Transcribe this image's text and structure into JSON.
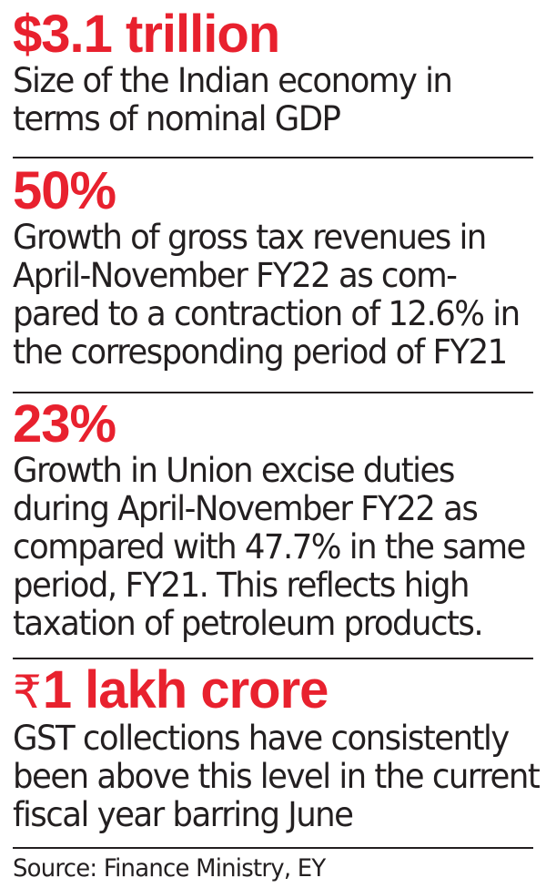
{
  "stats": [
    {
      "figure": "$3.1 trillion",
      "lines": [
        "Size of the Indian economy in",
        "terms of nominal GDP"
      ]
    },
    {
      "figure": "50%",
      "lines": [
        "Growth of gross tax revenues in",
        "April-November FY22 as com-",
        "pared to a contraction of 12.6% in",
        "the corresponding period of FY21"
      ]
    },
    {
      "figure": "23%",
      "lines": [
        "Growth in Union excise duties",
        "during April-November FY22 as",
        "compared with 47.7% in the same",
        "period, FY21. This reflects high",
        "taxation of petroleum products."
      ]
    },
    {
      "currency_symbol": "₹",
      "figure": "1 lakh crore",
      "lines": [
        "GST collections have consistently",
        "been above this level in the current",
        "fiscal year barring June"
      ]
    }
  ],
  "source": "Source: Finance Ministry, EY",
  "colors": {
    "accent": "#e8212e",
    "text": "#231f20"
  }
}
